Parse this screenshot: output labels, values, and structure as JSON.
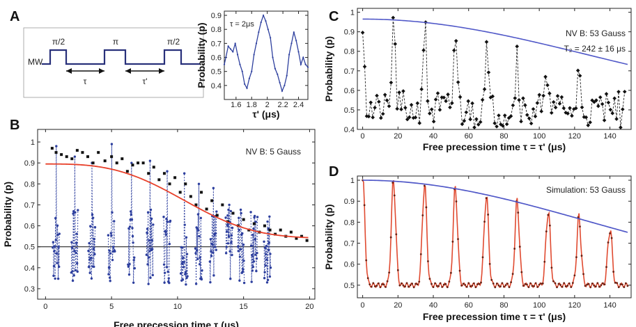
{
  "colors": {
    "data_black": "#111111",
    "data_blue": "#2d3f9e",
    "fit_red": "#e8402a",
    "envelope_blue": "#5058c8",
    "sim_red": "#e04a30",
    "sim_dot": "#6b1f10",
    "pulse": "#28307a"
  },
  "panels": {
    "A": {
      "letter": "A",
      "pulse": {
        "channel_label": "MW",
        "pulses": [
          "π/2",
          "π",
          "π/2"
        ],
        "intervals": [
          "τ",
          "τ'"
        ]
      },
      "inset": {
        "type": "line",
        "annotation": "τ = 2μs",
        "ylabel": "Probability (p)",
        "xlabel": "τ' (μs)",
        "xlim": [
          1.45,
          2.52
        ],
        "ylim": [
          0.3,
          0.93
        ],
        "xticks": [
          1.6,
          1.8,
          2,
          2.2,
          2.4
        ],
        "yticks": [
          0.4,
          0.5,
          0.6,
          0.7,
          0.8,
          0.9
        ],
        "x": [
          1.45,
          1.47,
          1.5,
          1.53,
          1.56,
          1.59,
          1.62,
          1.65,
          1.68,
          1.71,
          1.74,
          1.77,
          1.8,
          1.83,
          1.86,
          1.89,
          1.92,
          1.95,
          1.98,
          2.01,
          2.04,
          2.07,
          2.1,
          2.13,
          2.16,
          2.19,
          2.22,
          2.25,
          2.28,
          2.31,
          2.34,
          2.37,
          2.4,
          2.43,
          2.46,
          2.49,
          2.52
        ],
        "y": [
          0.55,
          0.6,
          0.68,
          0.66,
          0.64,
          0.7,
          0.62,
          0.55,
          0.5,
          0.41,
          0.38,
          0.45,
          0.5,
          0.62,
          0.7,
          0.78,
          0.85,
          0.9,
          0.86,
          0.8,
          0.74,
          0.6,
          0.52,
          0.48,
          0.42,
          0.36,
          0.4,
          0.47,
          0.62,
          0.7,
          0.78,
          0.72,
          0.64,
          0.55,
          0.6,
          0.55,
          0.53
        ]
      }
    },
    "B": {
      "letter": "B",
      "annotation": "NV B: 5 Gauss",
      "ylabel": "Probability (p)",
      "xlabel": "Free precession time τ (μs)",
      "xlim": [
        -0.6,
        20.4
      ],
      "ylim": [
        0.25,
        1.06
      ],
      "xticks": [
        0,
        5,
        10,
        15,
        20
      ],
      "yticks": [
        0.3,
        0.4,
        0.5,
        0.6,
        0.7,
        0.8,
        0.9,
        1
      ],
      "baseline": 0.5,
      "fit": {
        "type": "line",
        "top": 0.895,
        "bottom": 0.54,
        "tau": 12.0,
        "n": 3
      },
      "black_points": {
        "x": [
          0.5,
          0.8,
          1.2,
          1.6,
          2.0,
          2.4,
          2.8,
          3.2,
          3.6,
          4.0,
          4.5,
          5.0,
          5.4,
          5.8,
          6.2,
          6.6,
          7.0,
          7.4,
          7.8,
          8.2,
          8.6,
          9.0,
          9.4,
          9.8,
          10.2,
          10.6,
          11.0,
          11.4,
          11.8,
          12.2,
          12.6,
          13.0,
          13.4,
          13.8,
          14.2,
          14.6,
          15.0,
          15.4,
          15.8,
          16.2,
          16.6,
          17.0,
          17.4,
          17.8,
          18.2,
          18.6,
          19.0,
          19.4,
          19.8
        ],
        "y": [
          0.97,
          0.95,
          0.94,
          0.93,
          0.92,
          0.96,
          0.95,
          0.93,
          0.9,
          0.95,
          0.91,
          0.93,
          0.9,
          0.92,
          0.86,
          0.89,
          0.9,
          0.9,
          0.85,
          0.88,
          0.82,
          0.85,
          0.8,
          0.83,
          0.76,
          0.8,
          0.74,
          0.7,
          0.76,
          0.68,
          0.72,
          0.65,
          0.7,
          0.62,
          0.66,
          0.6,
          0.63,
          0.58,
          0.61,
          0.57,
          0.6,
          0.58,
          0.56,
          0.58,
          0.55,
          0.57,
          0.54,
          0.55,
          0.53
        ]
      },
      "oscillation_bursts": [
        0.8,
        2.2,
        3.5,
        5.0,
        6.5,
        7.9,
        9.2,
        10.5,
        11.6,
        12.7,
        13.9,
        14.8,
        15.8,
        16.8
      ],
      "burst_amplitude": [
        0.98,
        0.93,
        0.9,
        0.99,
        0.9,
        0.91,
        0.86,
        0.85,
        0.8,
        0.78,
        0.7,
        0.66,
        0.64,
        0.62
      ]
    },
    "C": {
      "letter": "C",
      "annotation_1": "NV B: 53 Gauss",
      "annotation_2": "T₂ = 242 ± 16 μs",
      "ylabel": "Probability (p)",
      "xlabel": "Free precession time  τ = τ'  (μs)",
      "xlim": [
        -3,
        152
      ],
      "ylim": [
        0.4,
        1.02
      ],
      "xticks": [
        0,
        20,
        40,
        60,
        80,
        100,
        120,
        140
      ],
      "yticks": [
        0.4,
        0.5,
        0.6,
        0.7,
        0.8,
        0.9,
        1
      ],
      "envelope": {
        "amplitude": 0.965,
        "baseline": 0.5,
        "T2": 242
      },
      "revival_period": 17.5
    },
    "D": {
      "letter": "D",
      "annotation": "Simulation: 53 Gauss",
      "ylabel": "Probability (p)",
      "xlabel": "Free precession time  τ = τ'  (μs)",
      "xlim": [
        -3,
        152
      ],
      "ylim": [
        0.44,
        1.02
      ],
      "xticks": [
        0,
        20,
        40,
        60,
        80,
        100,
        120,
        140
      ],
      "yticks": [
        0.5,
        0.6,
        0.7,
        0.8,
        0.9,
        1
      ],
      "envelope": {
        "amplitude": 1.0,
        "baseline": 0.5,
        "T2": 190
      },
      "revival_period": 17.5
    }
  }
}
